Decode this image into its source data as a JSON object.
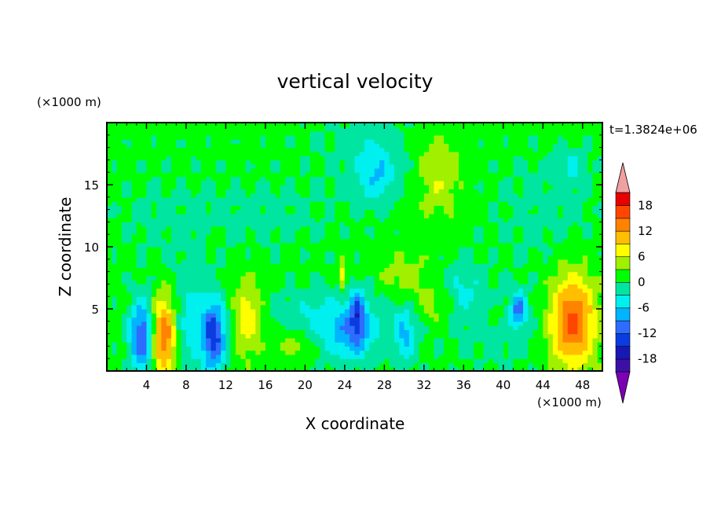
{
  "chart_data": {
    "type": "heatmap",
    "title": "vertical velocity",
    "xlabel": "X coordinate",
    "ylabel": "Z coordinate",
    "x_unit": "(×1000 m)",
    "y_unit": "(×1000 m)",
    "time_label": "t=1.3824e+06",
    "xlim": [
      0,
      50
    ],
    "ylim": [
      0,
      20
    ],
    "x_ticks": [
      4,
      8,
      12,
      16,
      20,
      24,
      28,
      32,
      36,
      40,
      44,
      48
    ],
    "y_ticks": [
      5,
      10,
      15
    ],
    "colorbar": {
      "levels": [
        -21,
        -18,
        -15,
        -12,
        -9,
        -6,
        -3,
        0,
        3,
        6,
        9,
        12,
        15,
        18,
        21
      ],
      "tick_labels": [
        18,
        12,
        6,
        0,
        -6,
        -12,
        -18
      ],
      "colors": [
        "#7b00b4",
        "#3c10a8",
        "#1818b4",
        "#0a3ce0",
        "#2e6cff",
        "#00b4ff",
        "#00f0f0",
        "#00e6a0",
        "#00ff00",
        "#a0f000",
        "#ffff00",
        "#ffbe00",
        "#ff8200",
        "#ff4600",
        "#e60000",
        "#f0a0a0"
      ]
    },
    "background_value": 1,
    "features": [
      {
        "x": 3.6,
        "z": 2.8,
        "value": -14,
        "sx": 0.9,
        "sz": 2.0
      },
      {
        "x": 5.7,
        "z": 2.8,
        "value": 15,
        "sx": 0.9,
        "sz": 2.3
      },
      {
        "x": 10.8,
        "z": 2.8,
        "value": -14,
        "sx": 0.8,
        "sz": 2.0
      },
      {
        "x": 14.2,
        "z": 4.4,
        "value": 8,
        "sx": 1.0,
        "sz": 2.2
      },
      {
        "x": 18.8,
        "z": 2.3,
        "value": 5,
        "sx": 1.6,
        "sz": 1.0
      },
      {
        "x": 8.5,
        "z": 4.0,
        "value": -5,
        "sx": 1.4,
        "sz": 3.0
      },
      {
        "x": 22.0,
        "z": 4.0,
        "value": -3,
        "sx": 3.0,
        "sz": 1.5
      },
      {
        "x": 25.3,
        "z": 4.6,
        "value": -10,
        "sx": 0.55,
        "sz": 1.4
      },
      {
        "x": 24.5,
        "z": 2.5,
        "value": -5,
        "sx": 1.6,
        "sz": 1.5
      },
      {
        "x": 30.1,
        "z": 2.8,
        "value": -6,
        "sx": 0.7,
        "sz": 1.6
      },
      {
        "x": 33.0,
        "z": 5.0,
        "value": 4,
        "sx": 1.2,
        "sz": 1.3
      },
      {
        "x": 30.0,
        "z": 7.5,
        "value": 4,
        "sx": 1.8,
        "sz": 1.4
      },
      {
        "x": 36.0,
        "z": 7.0,
        "value": -4,
        "sx": 1.3,
        "sz": 1.6
      },
      {
        "x": 41.6,
        "z": 5.0,
        "value": -10,
        "sx": 0.55,
        "sz": 1.0
      },
      {
        "x": 39.2,
        "z": 4.6,
        "value": 4,
        "sx": 0.4,
        "sz": 0.5
      },
      {
        "x": 47.0,
        "z": 4.0,
        "value": 15,
        "sx": 1.6,
        "sz": 2.6
      },
      {
        "x": 23.8,
        "z": 7.7,
        "value": 8,
        "sx": 0.25,
        "sz": 0.8
      },
      {
        "x": 27.2,
        "z": 15.8,
        "value": -6,
        "sx": 1.4,
        "sz": 1.7
      },
      {
        "x": 33.5,
        "z": 15.8,
        "value": 5,
        "sx": 1.6,
        "sz": 2.4
      },
      {
        "x": 47.0,
        "z": 16.5,
        "value": -4,
        "sx": 1.1,
        "sz": 1.0
      },
      {
        "x": 10.8,
        "z": 10.8,
        "value": 4,
        "sx": 0.5,
        "sz": 0.5
      },
      {
        "x": 26.0,
        "z": 18.0,
        "value": -2,
        "sx": 4.0,
        "sz": 2.5
      },
      {
        "x": 16.0,
        "z": 12.5,
        "value": -2,
        "sx": 5.0,
        "sz": 2.0
      },
      {
        "x": 6.0,
        "z": 12.0,
        "value": -1.5,
        "sx": 4.0,
        "sz": 3.0
      },
      {
        "x": 44.0,
        "z": 13.0,
        "value": -2,
        "sx": 4.0,
        "sz": 3.0
      },
      {
        "x": 25.0,
        "z": 4.0,
        "value": -3,
        "sx": 7.0,
        "sz": 2.0
      },
      {
        "x": 40.0,
        "z": 3.5,
        "value": -2,
        "sx": 3.0,
        "sz": 2.5
      }
    ]
  }
}
